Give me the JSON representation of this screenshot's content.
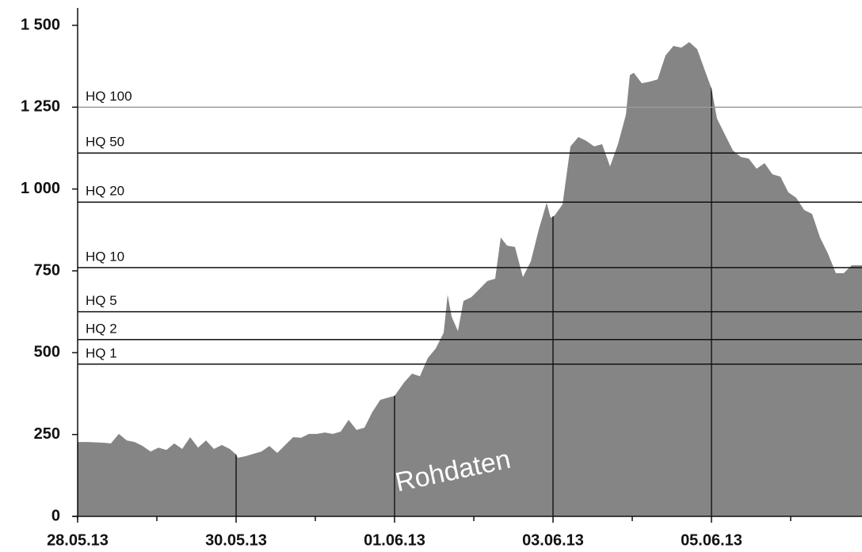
{
  "chart_data": {
    "type": "area",
    "x": [
      0,
      0.12,
      0.32,
      0.42,
      0.52,
      0.62,
      0.72,
      0.82,
      0.92,
      1.02,
      1.12,
      1.22,
      1.32,
      1.42,
      1.52,
      1.62,
      1.72,
      1.82,
      1.92,
      2.0,
      2.02,
      2.12,
      2.22,
      2.32,
      2.42,
      2.52,
      2.62,
      2.72,
      2.82,
      2.92,
      3.02,
      3.12,
      3.22,
      3.32,
      3.42,
      3.52,
      3.62,
      3.72,
      3.82,
      3.92,
      4.0,
      4.12,
      4.22,
      4.32,
      4.42,
      4.52,
      4.62,
      4.67,
      4.72,
      4.8,
      4.87,
      4.97,
      5.07,
      5.17,
      5.27,
      5.34,
      5.42,
      5.52,
      5.62,
      5.72,
      5.82,
      5.92,
      5.97,
      6.02,
      6.12,
      6.22,
      6.32,
      6.42,
      6.52,
      6.62,
      6.72,
      6.82,
      6.92,
      6.97,
      7.02,
      7.12,
      7.22,
      7.32,
      7.42,
      7.52,
      7.62,
      7.72,
      7.82,
      7.92,
      8.0,
      8.07,
      8.17,
      8.27,
      8.37,
      8.47,
      8.57,
      8.67,
      8.77,
      8.87,
      8.97,
      9.07,
      9.17,
      9.27,
      9.37,
      9.47,
      9.57,
      9.67,
      9.77,
      9.9
    ],
    "values": [
      227,
      227,
      225,
      223,
      252,
      232,
      227,
      215,
      198,
      210,
      203,
      223,
      206,
      242,
      210,
      232,
      206,
      218,
      206,
      189,
      179,
      184,
      191,
      198,
      215,
      194,
      218,
      242,
      240,
      252,
      252,
      256,
      252,
      259,
      295,
      264,
      271,
      319,
      356,
      363,
      368,
      409,
      436,
      428,
      484,
      513,
      561,
      677,
      610,
      566,
      658,
      670,
      694,
      719,
      726,
      852,
      827,
      823,
      731,
      779,
      876,
      958,
      912,
      919,
      953,
      1130,
      1159,
      1147,
      1130,
      1137,
      1069,
      1137,
      1227,
      1348,
      1355,
      1323,
      1328,
      1335,
      1408,
      1437,
      1432,
      1449,
      1427,
      1360,
      1307,
      1215,
      1166,
      1118,
      1098,
      1093,
      1062,
      1079,
      1045,
      1038,
      990,
      973,
      936,
      924,
      852,
      803,
      743,
      743,
      767,
      767
    ],
    "color": "#858585",
    "xlim": [
      0,
      9.9
    ],
    "xticks": [
      {
        "value": 0,
        "label": "28.05.13"
      },
      {
        "value": 2,
        "label": "30.05.13"
      },
      {
        "value": 4,
        "label": "01.06.13"
      },
      {
        "value": 6,
        "label": "03.06.13"
      },
      {
        "value": 8,
        "label": "05.06.13"
      }
    ],
    "xminor_ticks": [
      1,
      3,
      5,
      7,
      9
    ],
    "ylim": [
      0,
      1500
    ],
    "yticks": [
      0,
      250,
      500,
      750,
      {
        "value": 1000,
        "label": "1 000"
      },
      {
        "value": 1250,
        "label": "1 250"
      },
      {
        "value": 1500,
        "label": "1 500"
      }
    ],
    "reference_lines": [
      {
        "label": "HQ 100",
        "value": 1250,
        "color": "#9a9a9a"
      },
      {
        "label": "HQ 50",
        "value": 1110,
        "color": "#111111"
      },
      {
        "label": "HQ 20",
        "value": 960,
        "color": "#111111"
      },
      {
        "label": "HQ 10",
        "value": 760,
        "color": "#111111"
      },
      {
        "label": "HQ 5",
        "value": 625,
        "color": "#111111"
      },
      {
        "label": "HQ 2",
        "value": 540,
        "color": "#111111"
      },
      {
        "label": "HQ 1",
        "value": 465,
        "color": "#111111"
      }
    ],
    "annotation": "Rohdaten"
  }
}
